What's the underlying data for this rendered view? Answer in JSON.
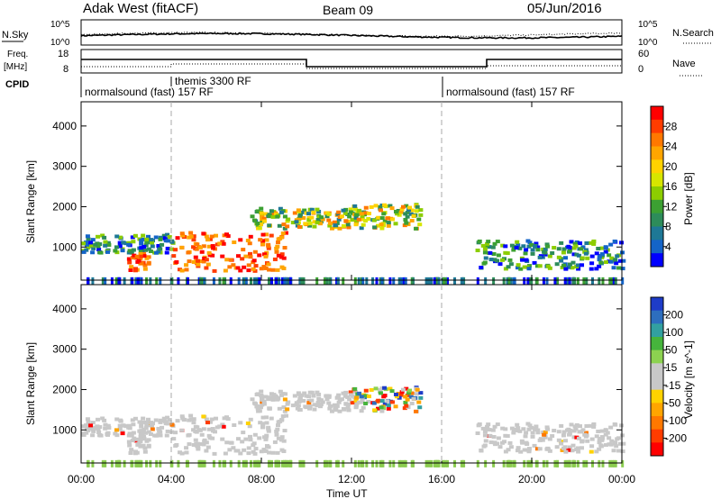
{
  "header": {
    "site": "Adak West (fitACF)",
    "beam": "Beam 09",
    "date": "05/Jun/2016"
  },
  "top_panels": {
    "nsky_label": "N.Sky",
    "nsearch_label": "N.Search",
    "nsky_ticks": [
      "10^5",
      "10^0"
    ],
    "nsearch_ticks": [
      "10^5",
      "10^0"
    ],
    "freq_label_1": "Freq.",
    "freq_label_2": "[MHz]",
    "freq_ticks": [
      "18",
      "8"
    ],
    "nave_label": "Nave",
    "nave_ticks": [
      "60",
      "0"
    ],
    "cpid_label": "CPID",
    "cpid_segments": [
      {
        "label": "normalsound (fast) 157 RF",
        "start_hour": 0
      },
      {
        "label": "themis 3300 RF",
        "start_hour": 4
      },
      {
        "label": "normalsound (fast) 157 RF",
        "start_hour": 16
      }
    ]
  },
  "power_colorbar": {
    "label": "Power [dB]",
    "ticks": [
      "28",
      "24",
      "20",
      "16",
      "12",
      "8",
      "4"
    ],
    "colors": [
      "#ff0000",
      "#ff3c00",
      "#ff7800",
      "#ffa500",
      "#ffd200",
      "#d7e600",
      "#8ccd00",
      "#3ca032",
      "#2d8c5a",
      "#1e7896",
      "#1464c8",
      "#0000ff"
    ]
  },
  "velocity_colorbar": {
    "label": "Velocity [m s^-1]",
    "ticks": [
      "200",
      "100",
      "50",
      "15",
      "-15",
      "-50",
      "-100",
      "-200"
    ],
    "colors": [
      "#1e3cc8",
      "#2d6ebe",
      "#32a0a0",
      "#46b43c",
      "#8cd250",
      "#c8c8c8",
      "#c8c8c8",
      "#ffd200",
      "#ffa500",
      "#ff7800",
      "#ff3c00",
      "#ff0000"
    ]
  },
  "chart_data": {
    "type": "heatmap",
    "xlabel": "Time UT",
    "x_ticks": [
      "00:00",
      "04:00",
      "08:00",
      "12:00",
      "16:00",
      "20:00",
      "00:00"
    ],
    "xlim": [
      0,
      24
    ],
    "ylabel": "Slant Range [km]",
    "y_ticks": [
      "4000",
      "3000",
      "2000",
      "1000"
    ],
    "ylim": [
      180,
      4600
    ],
    "colors": {
      "ground_scatter": "#c8c8c8",
      "low_range": "#8ccd50"
    },
    "regions": [
      {
        "hours": [
          0.0,
          4.0
        ],
        "range_km": [
          900,
          1350
        ],
        "power": "low",
        "velocity": "ground"
      },
      {
        "hours": [
          2.0,
          3.0
        ],
        "range_km": [
          450,
          900
        ],
        "power": "high",
        "velocity": "ground"
      },
      {
        "hours": [
          4.0,
          9.0
        ],
        "range_km": [
          450,
          1400
        ],
        "power": "high",
        "velocity": "ground"
      },
      {
        "hours": [
          7.5,
          12.5
        ],
        "range_km": [
          1500,
          2000
        ],
        "power": "mid",
        "velocity": "ground"
      },
      {
        "hours": [
          12.0,
          15.0
        ],
        "range_km": [
          1500,
          2100
        ],
        "power": "mid",
        "velocity": "mixed"
      },
      {
        "hours": [
          17.5,
          24.0
        ],
        "range_km": [
          500,
          1200
        ],
        "power": "low",
        "velocity": "ground"
      }
    ]
  }
}
